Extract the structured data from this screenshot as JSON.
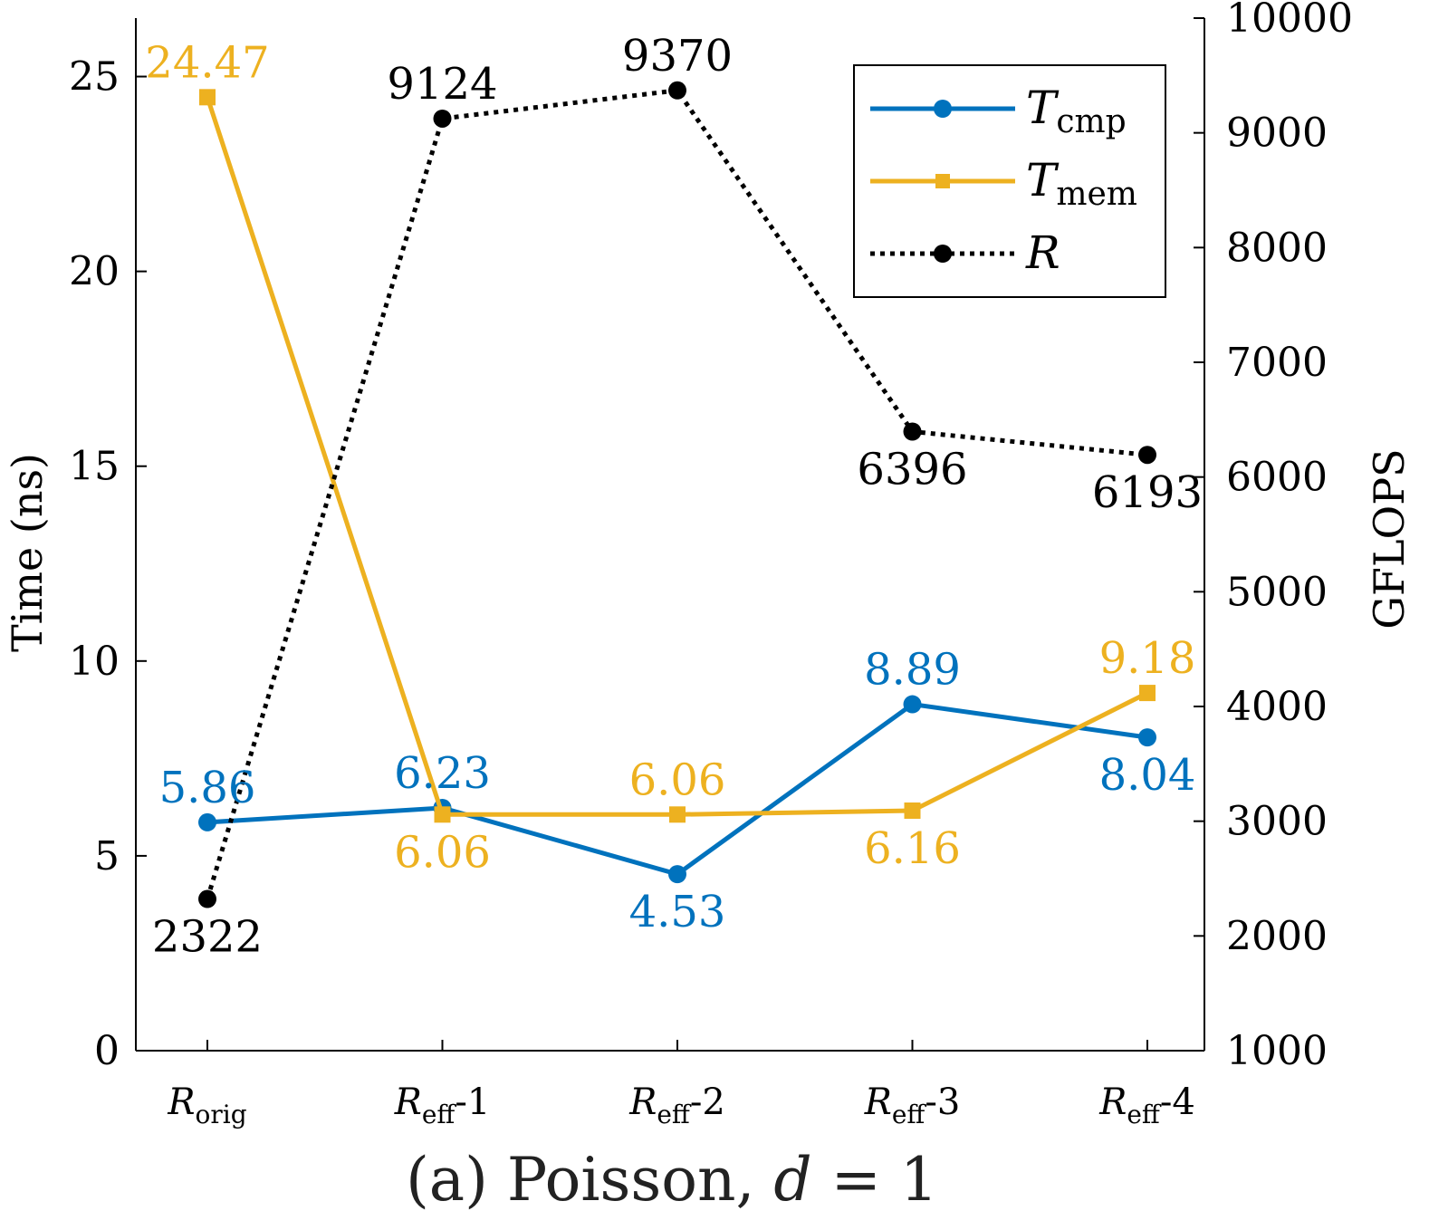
{
  "chart_data": {
    "type": "line",
    "categories": [
      {
        "main": "R",
        "sub": "orig",
        "suffix": ""
      },
      {
        "main": "R",
        "sub": "eff",
        "suffix": "-1"
      },
      {
        "main": "R",
        "sub": "eff",
        "suffix": "-2"
      },
      {
        "main": "R",
        "sub": "eff",
        "suffix": "-3"
      },
      {
        "main": "R",
        "sub": "eff",
        "suffix": "-4"
      }
    ],
    "left_axis": {
      "label": "Time (ns)",
      "ylim": [
        0,
        26.5
      ],
      "ticks": [
        "0",
        "5",
        "10",
        "15",
        "20",
        "25"
      ],
      "tick_values": [
        0,
        5,
        10,
        15,
        20,
        25
      ]
    },
    "right_axis": {
      "label": "GFLOPS",
      "ylim": [
        1000,
        10000
      ],
      "ticks": [
        "1000",
        "2000",
        "3000",
        "4000",
        "5000",
        "6000",
        "7000",
        "8000",
        "9000",
        "10000"
      ],
      "tick_values": [
        1000,
        2000,
        3000,
        4000,
        5000,
        6000,
        7000,
        8000,
        9000,
        10000
      ]
    },
    "series": [
      {
        "name": "T",
        "sub": "cmp",
        "axis": "left",
        "color": "#0072BD",
        "marker": "circle",
        "line": "solid",
        "values": [
          5.86,
          6.23,
          4.53,
          8.89,
          8.04
        ],
        "labels": [
          "5.86",
          "6.23",
          "4.53",
          "8.89",
          "8.04"
        ],
        "label_pos": [
          "above",
          "above",
          "below",
          "above",
          "below"
        ]
      },
      {
        "name": "T",
        "sub": "mem",
        "axis": "left",
        "color": "#EDB120",
        "marker": "square",
        "line": "solid",
        "values": [
          24.47,
          6.06,
          6.06,
          6.16,
          9.18
        ],
        "labels": [
          "24.47",
          "6.06",
          "6.06",
          "6.16",
          "9.18"
        ],
        "label_pos": [
          "above",
          "below",
          "above",
          "below",
          "above"
        ]
      },
      {
        "name": "R",
        "sub": "",
        "axis": "right",
        "color": "#000000",
        "marker": "circle",
        "line": "dotted",
        "values": [
          2322,
          9124,
          9370,
          6396,
          6193
        ],
        "labels": [
          "2322",
          "9124",
          "9370",
          "6396",
          "6193"
        ],
        "label_pos": [
          "below",
          "above",
          "above",
          "below",
          "below"
        ]
      }
    ],
    "legend_position": "top-right",
    "caption": {
      "prefix": "(a) Poisson, ",
      "var": "d",
      "suffix": " = 1"
    }
  }
}
